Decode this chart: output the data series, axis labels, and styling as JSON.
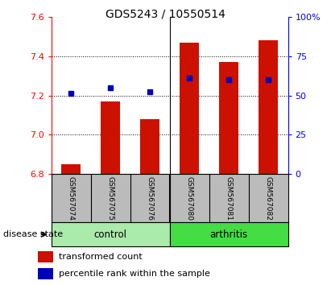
{
  "title": "GDS5243 / 10550514",
  "samples": [
    "GSM567074",
    "GSM567075",
    "GSM567076",
    "GSM567080",
    "GSM567081",
    "GSM567082"
  ],
  "red_values": [
    6.85,
    7.17,
    7.08,
    7.47,
    7.37,
    7.48
  ],
  "blue_values": [
    7.21,
    7.24,
    7.22,
    7.29,
    7.28,
    7.28
  ],
  "ylim_left": [
    6.8,
    7.6
  ],
  "ylim_right": [
    0,
    100
  ],
  "yticks_left": [
    6.8,
    7.0,
    7.2,
    7.4,
    7.6
  ],
  "yticks_right": [
    0,
    25,
    50,
    75,
    100
  ],
  "ytick_labels_right": [
    "0",
    "25",
    "50",
    "75",
    "100%"
  ],
  "group_colors": {
    "control": "#AAEAAA",
    "arthritis": "#44DD44"
  },
  "bar_color": "#CC1100",
  "blue_color": "#0000BB",
  "label_row_bg": "#BBBBBB",
  "legend_red": "transformed count",
  "legend_blue": "percentile rank within the sample",
  "bar_base": 6.8,
  "bar_width": 0.5,
  "blue_marker_size": 5,
  "n_control": 3,
  "n_arthritis": 3
}
